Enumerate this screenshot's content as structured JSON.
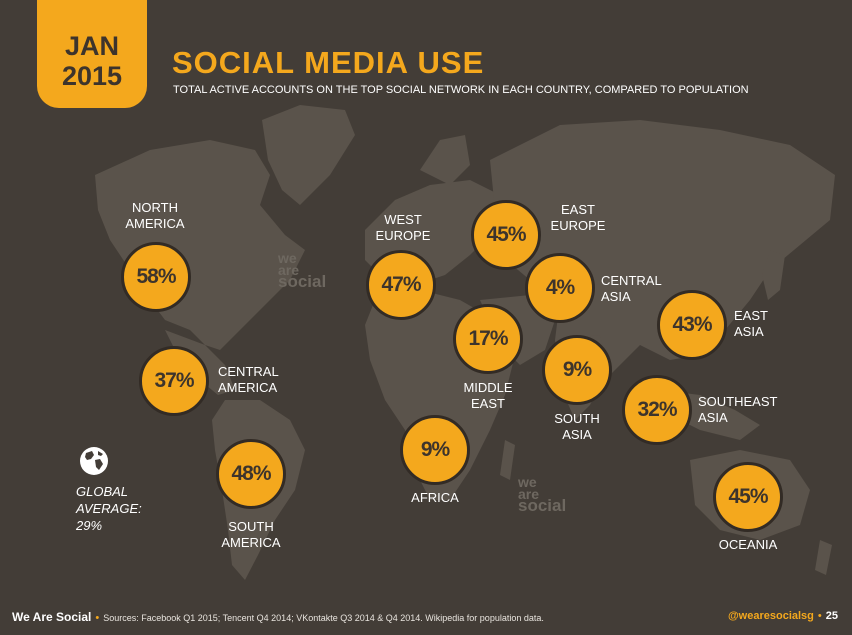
{
  "header": {
    "month": "JAN",
    "year": "2015",
    "title": "SOCIAL MEDIA USE",
    "subtitle": "TOTAL ACTIVE ACCOUNTS ON THE TOP SOCIAL NETWORK IN EACH COUNTRY, COMPARED TO POPULATION"
  },
  "regions": [
    {
      "id": "north-america",
      "label_line1": "NORTH",
      "label_line2": "AMERICA",
      "value": "58%"
    },
    {
      "id": "central-america",
      "label_line1": "CENTRAL",
      "label_line2": "AMERICA",
      "value": "37%"
    },
    {
      "id": "south-america",
      "label_line1": "SOUTH",
      "label_line2": "AMERICA",
      "value": "48%"
    },
    {
      "id": "west-europe",
      "label_line1": "WEST",
      "label_line2": "EUROPE",
      "value": "47%"
    },
    {
      "id": "east-europe",
      "label_line1": "EAST",
      "label_line2": "EUROPE",
      "value": "45%"
    },
    {
      "id": "central-asia",
      "label_line1": "CENTRAL",
      "label_line2": "ASIA",
      "value": "4%"
    },
    {
      "id": "middle-east",
      "label_line1": "MIDDLE",
      "label_line2": "EAST",
      "value": "17%"
    },
    {
      "id": "africa",
      "label_line1": "AFRICA",
      "label_line2": "",
      "value": "9%"
    },
    {
      "id": "south-asia",
      "label_line1": "SOUTH",
      "label_line2": "ASIA",
      "value": "9%"
    },
    {
      "id": "east-asia",
      "label_line1": "EAST",
      "label_line2": "ASIA",
      "value": "43%"
    },
    {
      "id": "southeast-asia",
      "label_line1": "SOUTHEAST",
      "label_line2": "ASIA",
      "value": "32%"
    },
    {
      "id": "oceania",
      "label_line1": "OCEANIA",
      "label_line2": "",
      "value": "45%"
    }
  ],
  "global": {
    "line1": "GLOBAL",
    "line2": "AVERAGE:",
    "value": "29%",
    "icon": "globe-icon"
  },
  "watermark": {
    "line1": "we",
    "line2": "are",
    "line3": "social"
  },
  "footer": {
    "brand": "We Are Social",
    "sources": "Sources: Facebook Q1 2015; Tencent Q4 2014; VKontakte Q3 2014 & Q4 2014. Wikipedia for population data.",
    "handle": "@wearesocialsg",
    "page_number": "25"
  },
  "colors": {
    "background": "#433d37",
    "land": "#5a534b",
    "accent": "#f4a81d",
    "text": "#ffffff"
  }
}
